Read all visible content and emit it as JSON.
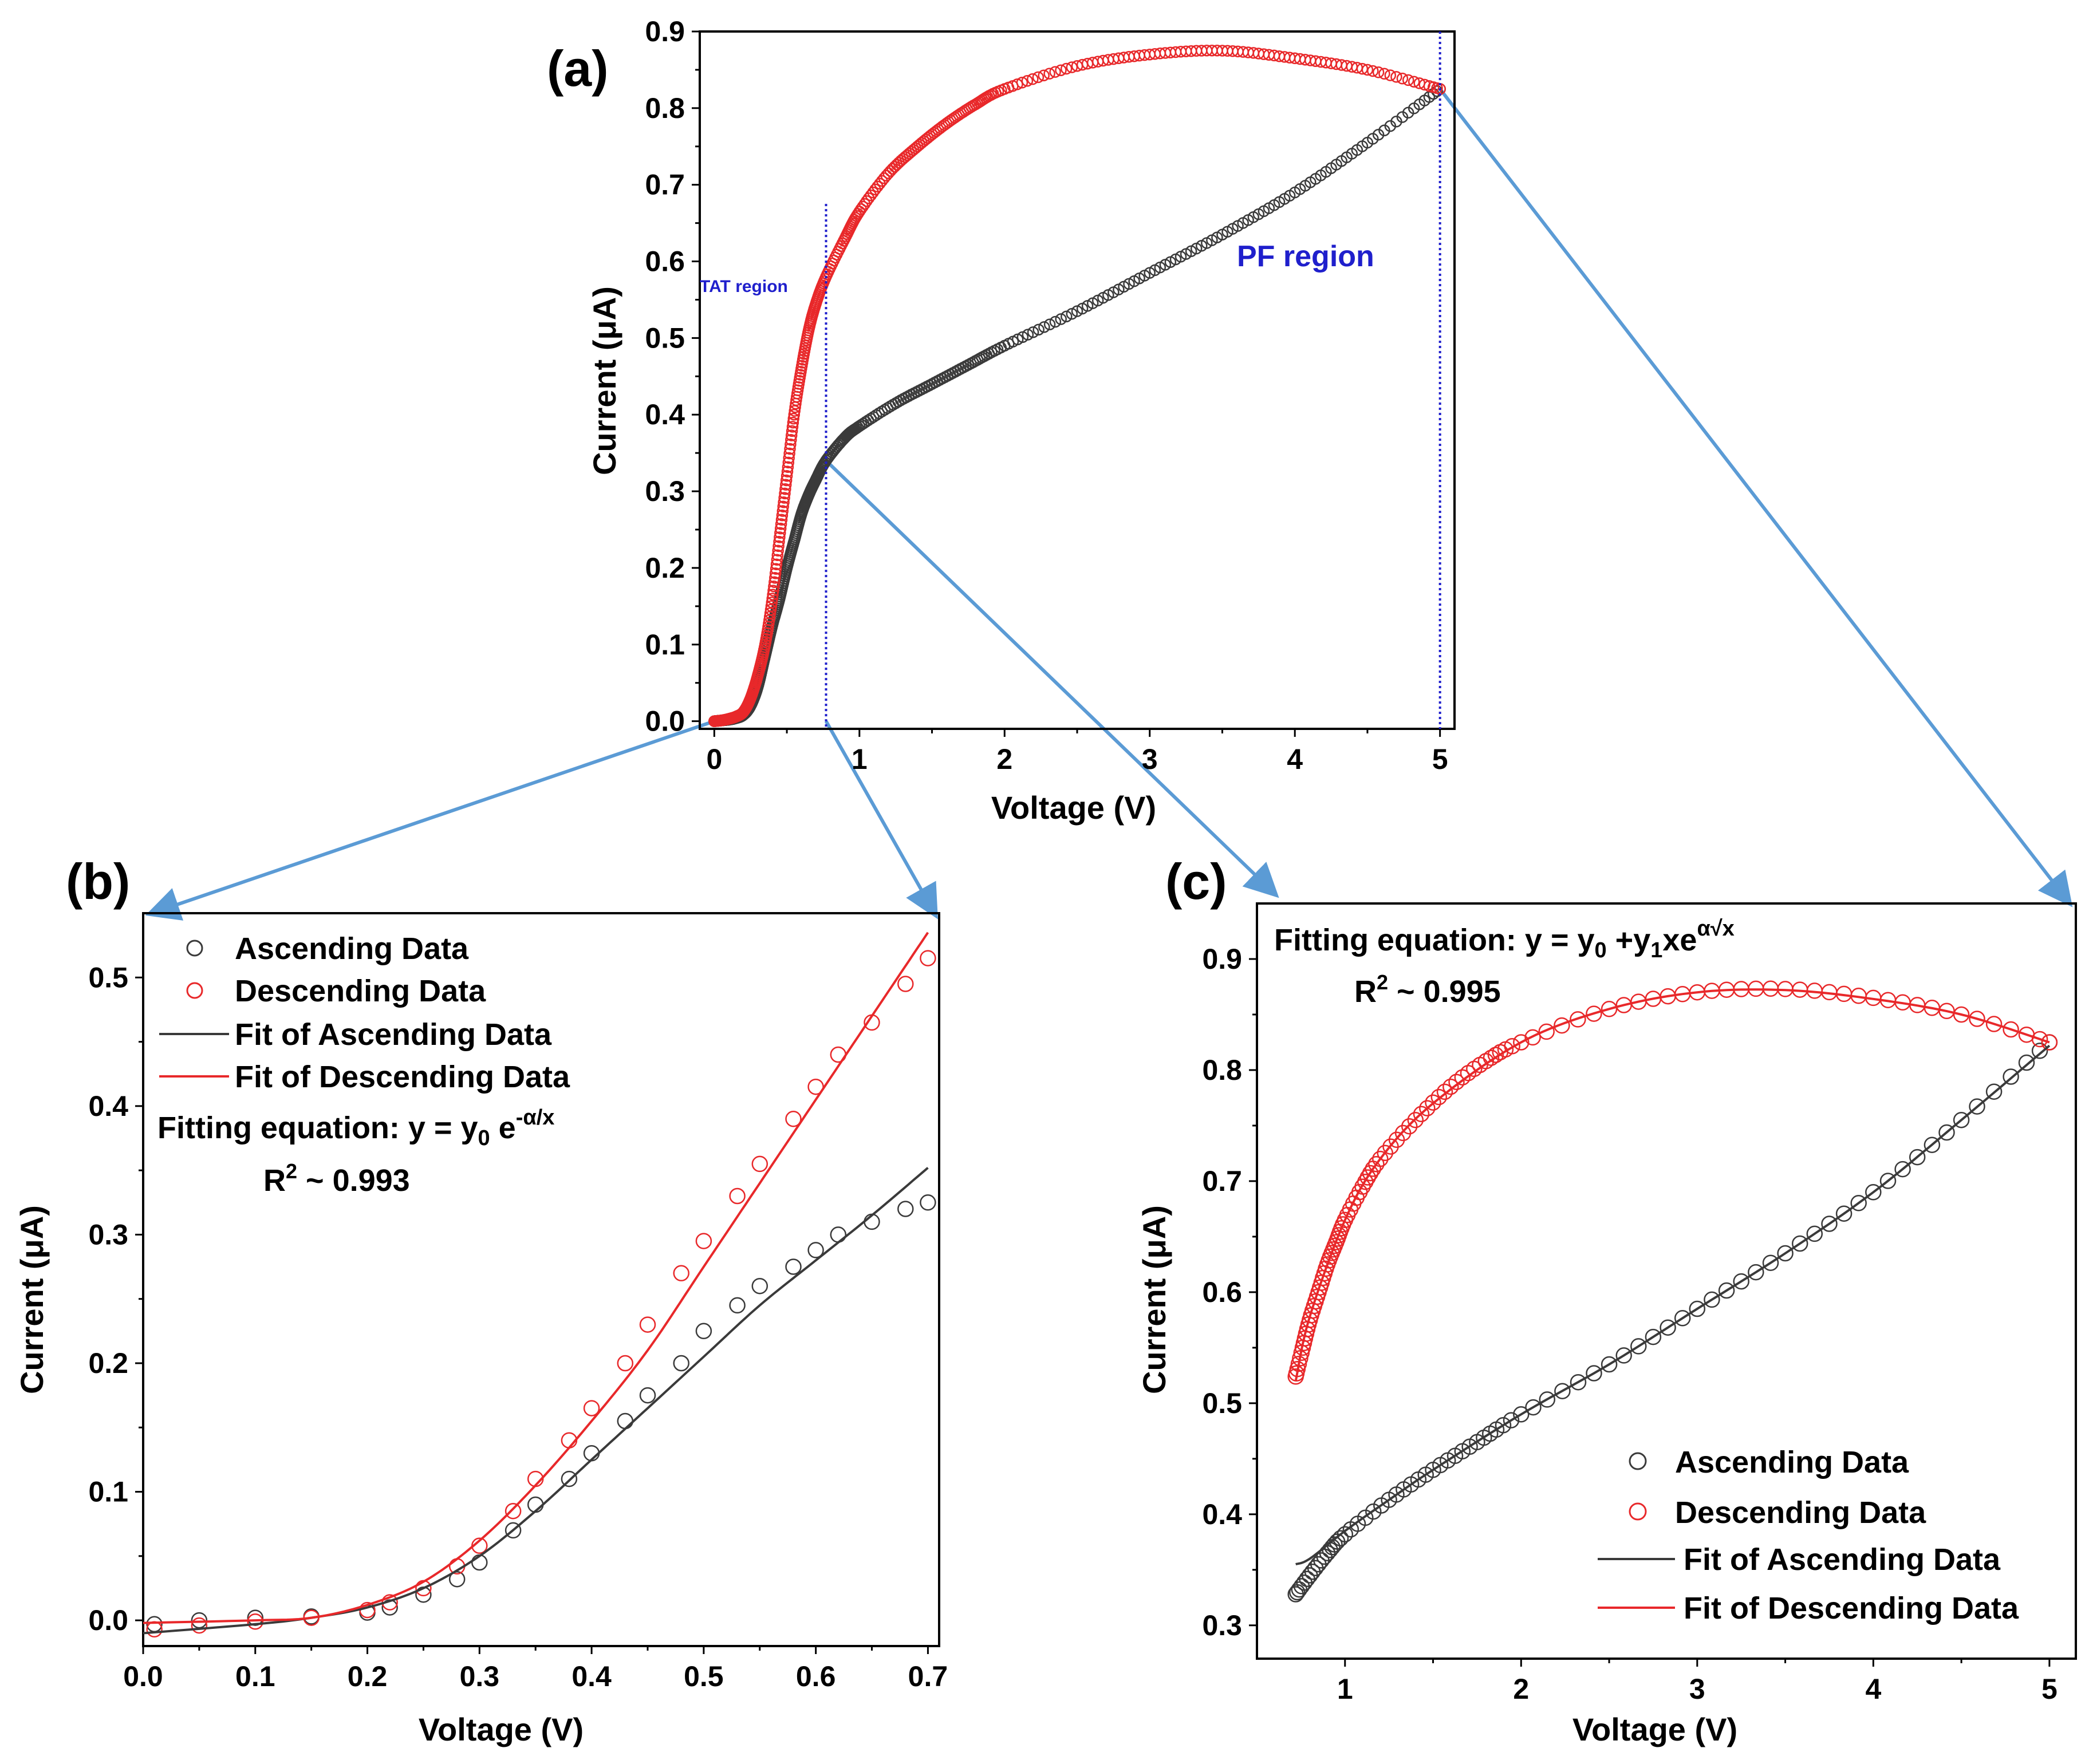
{
  "colors": {
    "ascending": "#3a3a3a",
    "descending": "#e8282a",
    "connector": "#5b9bd5",
    "region_line": "#1f1fcc",
    "region_text": "#1f1fcc"
  },
  "chart_data": [
    {
      "id": "a",
      "type": "scatter",
      "panel_label": "(a)",
      "xlabel": "Voltage (V)",
      "ylabel": "Current (μA)",
      "xlim": [
        -0.1,
        5.1
      ],
      "ylim": [
        -0.01,
        0.9
      ],
      "xticks": [
        0,
        1,
        2,
        3,
        4,
        5
      ],
      "xtick_labels": [
        "0",
        "1",
        "2",
        "3",
        "4",
        "5"
      ],
      "yticks": [
        0.0,
        0.1,
        0.2,
        0.3,
        0.4,
        0.5,
        0.6,
        0.7,
        0.8,
        0.9
      ],
      "ytick_labels": [
        "0.0",
        "0.1",
        "0.2",
        "0.3",
        "0.4",
        "0.5",
        "0.6",
        "0.7",
        "0.8",
        "0.9"
      ],
      "annotations": {
        "tat": "TAT region",
        "pf": "PF region"
      },
      "region_lines_x": [
        0.77,
        5.0
      ],
      "series": [
        {
          "name": "Ascending",
          "x": [
            0.0,
            0.05,
            0.1,
            0.15,
            0.2,
            0.25,
            0.3,
            0.35,
            0.4,
            0.45,
            0.5,
            0.55,
            0.6,
            0.65,
            0.7,
            0.77,
            0.9,
            1.0,
            1.25,
            1.5,
            1.75,
            2.0,
            2.5,
            3.0,
            3.5,
            4.0,
            4.5,
            5.0
          ],
          "y": [
            0.0,
            0.001,
            0.002,
            0.004,
            0.008,
            0.02,
            0.045,
            0.085,
            0.125,
            0.16,
            0.2,
            0.235,
            0.27,
            0.295,
            0.315,
            0.34,
            0.37,
            0.385,
            0.415,
            0.44,
            0.465,
            0.49,
            0.535,
            0.585,
            0.635,
            0.69,
            0.755,
            0.825
          ]
        },
        {
          "name": "Descending",
          "x": [
            0.0,
            0.05,
            0.1,
            0.15,
            0.2,
            0.25,
            0.3,
            0.35,
            0.4,
            0.45,
            0.5,
            0.55,
            0.6,
            0.65,
            0.7,
            0.77,
            0.9,
            1.0,
            1.2,
            1.4,
            1.6,
            1.8,
            2.0,
            2.5,
            3.0,
            3.5,
            4.0,
            4.5,
            5.0
          ],
          "y": [
            0.0,
            0.001,
            0.003,
            0.006,
            0.012,
            0.03,
            0.06,
            0.1,
            0.16,
            0.24,
            0.32,
            0.4,
            0.46,
            0.51,
            0.545,
            0.58,
            0.63,
            0.665,
            0.715,
            0.75,
            0.78,
            0.805,
            0.825,
            0.855,
            0.87,
            0.875,
            0.865,
            0.85,
            0.825
          ]
        }
      ]
    },
    {
      "id": "b",
      "type": "scatter",
      "panel_label": "(b)",
      "xlabel": "Voltage (V)",
      "ylabel": "Current (μA)",
      "xlim": [
        0.0,
        0.71
      ],
      "ylim": [
        -0.02,
        0.55
      ],
      "xticks": [
        0.0,
        0.1,
        0.2,
        0.3,
        0.4,
        0.5,
        0.6,
        0.7
      ],
      "xtick_labels": [
        "0.0",
        "0.1",
        "0.2",
        "0.3",
        "0.4",
        "0.5",
        "0.6",
        "0.7"
      ],
      "yticks": [
        0.0,
        0.1,
        0.2,
        0.3,
        0.4,
        0.5
      ],
      "ytick_labels": [
        "0.0",
        "0.1",
        "0.2",
        "0.3",
        "0.4",
        "0.5"
      ],
      "legend": [
        "Ascending Data",
        "Descending Data",
        "Fit of Ascending Data",
        "Fit of Descending Data"
      ],
      "equation": {
        "prefix": "Fitting equation: y = y",
        "sub0": "0",
        "mid": " e",
        "sup": "-α/x"
      },
      "r2": {
        "r": "R",
        "exp": "2",
        "rest": " ~ 0.993"
      },
      "series": [
        {
          "name": "Ascending Data",
          "x": [
            0.01,
            0.05,
            0.1,
            0.15,
            0.2,
            0.22,
            0.25,
            0.28,
            0.3,
            0.33,
            0.35,
            0.38,
            0.4,
            0.43,
            0.45,
            0.48,
            0.5,
            0.53,
            0.55,
            0.58,
            0.6,
            0.62,
            0.65,
            0.68,
            0.7
          ],
          "y": [
            -0.003,
            0.0,
            0.002,
            0.003,
            0.006,
            0.01,
            0.02,
            0.032,
            0.045,
            0.07,
            0.09,
            0.11,
            0.13,
            0.155,
            0.175,
            0.2,
            0.225,
            0.245,
            0.26,
            0.275,
            0.288,
            0.3,
            0.31,
            0.32,
            0.325
          ]
        },
        {
          "name": "Descending Data",
          "x": [
            0.01,
            0.05,
            0.1,
            0.15,
            0.2,
            0.22,
            0.25,
            0.28,
            0.3,
            0.33,
            0.35,
            0.38,
            0.4,
            0.43,
            0.45,
            0.48,
            0.5,
            0.53,
            0.55,
            0.58,
            0.6,
            0.62,
            0.65,
            0.68,
            0.7
          ],
          "y": [
            -0.007,
            -0.004,
            -0.001,
            0.002,
            0.008,
            0.014,
            0.025,
            0.042,
            0.058,
            0.085,
            0.11,
            0.14,
            0.165,
            0.2,
            0.23,
            0.27,
            0.295,
            0.33,
            0.355,
            0.39,
            0.415,
            0.44,
            0.465,
            0.495,
            0.515
          ]
        },
        {
          "name": "Fit of Ascending Data",
          "x": [
            0.0,
            0.1,
            0.15,
            0.2,
            0.25,
            0.3,
            0.35,
            0.4,
            0.45,
            0.5,
            0.55,
            0.6,
            0.65,
            0.7
          ],
          "y": [
            -0.01,
            -0.003,
            0.002,
            0.01,
            0.025,
            0.05,
            0.085,
            0.125,
            0.165,
            0.205,
            0.245,
            0.28,
            0.315,
            0.352
          ]
        },
        {
          "name": "Fit of Descending Data",
          "x": [
            0.0,
            0.1,
            0.15,
            0.2,
            0.25,
            0.3,
            0.35,
            0.4,
            0.45,
            0.5,
            0.55,
            0.6,
            0.65,
            0.7
          ],
          "y": [
            -0.002,
            0.0,
            0.002,
            0.012,
            0.03,
            0.062,
            0.105,
            0.155,
            0.21,
            0.275,
            0.34,
            0.405,
            0.47,
            0.535
          ]
        }
      ]
    },
    {
      "id": "c",
      "type": "scatter",
      "panel_label": "(c)",
      "xlabel": "Voltage (V)",
      "ylabel": "Current (μA)",
      "xlim": [
        0.5,
        5.15
      ],
      "ylim": [
        0.27,
        0.95
      ],
      "xticks": [
        1,
        2,
        3,
        4,
        5
      ],
      "xtick_labels": [
        "1",
        "2",
        "3",
        "4",
        "5"
      ],
      "yticks": [
        0.3,
        0.4,
        0.5,
        0.6,
        0.7,
        0.8,
        0.9
      ],
      "ytick_labels": [
        "0.3",
        "0.4",
        "0.5",
        "0.6",
        "0.7",
        "0.8",
        "0.9"
      ],
      "legend": [
        "Ascending Data",
        "Descending Data",
        "Fit of Ascending Data",
        "Fit of Descending Data"
      ],
      "equation": {
        "prefix": "Fitting equation: y = y",
        "sub0": "0",
        "mid1": " +y",
        "sub1": "1",
        "mid2": "xe",
        "sup": "α√",
        "supx": "x"
      },
      "r2": {
        "r": "R",
        "exp": "2",
        "rest": " ~ 0.995"
      },
      "series": [
        {
          "name": "Ascending Data",
          "x": [
            0.72,
            0.8,
            0.9,
            1.0,
            1.25,
            1.5,
            1.75,
            2.0,
            2.5,
            3.0,
            3.5,
            4.0,
            4.5,
            5.0
          ],
          "y": [
            0.328,
            0.345,
            0.365,
            0.382,
            0.413,
            0.44,
            0.465,
            0.49,
            0.535,
            0.585,
            0.635,
            0.69,
            0.755,
            0.825
          ]
        },
        {
          "name": "Descending Data",
          "x": [
            0.72,
            0.76,
            0.8,
            0.85,
            0.9,
            0.95,
            1.0,
            1.1,
            1.2,
            1.4,
            1.6,
            1.8,
            2.0,
            2.5,
            3.0,
            3.5,
            4.0,
            4.5,
            5.0
          ],
          "y": [
            0.524,
            0.55,
            0.575,
            0.6,
            0.625,
            0.645,
            0.665,
            0.695,
            0.72,
            0.755,
            0.785,
            0.808,
            0.825,
            0.855,
            0.87,
            0.873,
            0.865,
            0.85,
            0.825
          ]
        },
        {
          "name": "Fit of Ascending Data",
          "x": [
            0.72,
            0.8,
            1.0,
            1.25,
            1.5,
            2.0,
            2.5,
            3.0,
            3.5,
            4.0,
            4.5,
            5.0
          ],
          "y": [
            0.355,
            0.36,
            0.385,
            0.413,
            0.44,
            0.49,
            0.535,
            0.585,
            0.635,
            0.69,
            0.755,
            0.822
          ]
        },
        {
          "name": "Fit of Descending Data",
          "x": [
            0.72,
            0.8,
            1.0,
            1.2,
            1.5,
            2.0,
            2.5,
            3.0,
            3.5,
            4.0,
            4.5,
            5.0
          ],
          "y": [
            0.52,
            0.578,
            0.665,
            0.72,
            0.77,
            0.825,
            0.855,
            0.87,
            0.872,
            0.864,
            0.85,
            0.825
          ]
        }
      ]
    }
  ]
}
